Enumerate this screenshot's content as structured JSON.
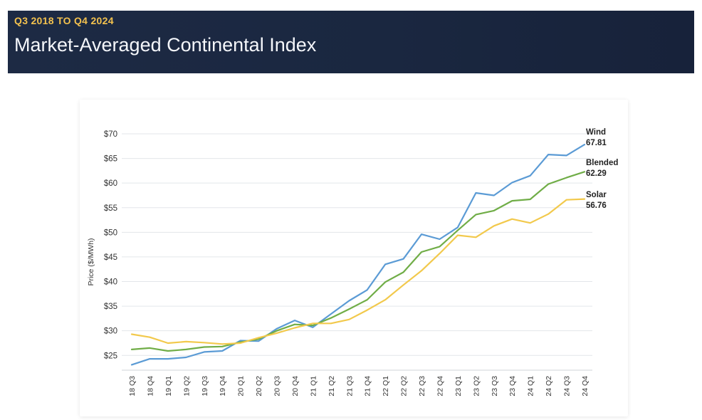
{
  "header": {
    "subtitle": "Q3 2018 TO Q4 2024",
    "title": "Market-Averaged Continental Index"
  },
  "chart_data": {
    "type": "line",
    "title": "Market-Averaged Continental Index",
    "subtitle": "Q3 2018 TO Q4 2024",
    "xlabel": "",
    "ylabel": "Price ($/MWh)",
    "ylim": [
      22,
      70
    ],
    "yticks": [
      25,
      30,
      35,
      40,
      45,
      50,
      55,
      60,
      65,
      70
    ],
    "ytick_labels": [
      "$25",
      "$30",
      "$35",
      "$40",
      "$45",
      "$50",
      "$55",
      "$60",
      "$65",
      "$70"
    ],
    "grid": true,
    "categories": [
      "18 Q3",
      "18 Q4",
      "19 Q1",
      "19 Q2",
      "19 Q3",
      "19 Q4",
      "20 Q1",
      "20 Q2",
      "20 Q3",
      "20 Q4",
      "21 Q1",
      "21 Q2",
      "21 Q3",
      "21 Q4",
      "22 Q1",
      "22 Q2",
      "22 Q3",
      "22 Q4",
      "23 Q1",
      "23 Q2",
      "23 Q3",
      "23 Q4",
      "24 Q1",
      "24 Q2",
      "24 Q3",
      "24 Q4"
    ],
    "series": [
      {
        "name": "Wind",
        "end_label": "67.81",
        "color": "#5b9bd5",
        "values": [
          23.1,
          24.3,
          24.3,
          24.6,
          25.7,
          25.9,
          28.0,
          27.9,
          30.4,
          32.1,
          30.7,
          33.4,
          36.1,
          38.3,
          43.5,
          44.6,
          49.6,
          48.6,
          51.0,
          58.0,
          57.5,
          60.1,
          61.5,
          65.8,
          65.6,
          67.81
        ]
      },
      {
        "name": "Blended",
        "end_label": "62.29",
        "color": "#70ad47",
        "values": [
          26.2,
          26.5,
          25.9,
          26.2,
          26.7,
          26.8,
          27.7,
          28.3,
          30.0,
          31.3,
          31.1,
          32.6,
          34.4,
          36.3,
          39.9,
          41.9,
          46.0,
          47.1,
          50.4,
          53.6,
          54.4,
          56.4,
          56.7,
          59.8,
          61.1,
          62.29
        ]
      },
      {
        "name": "Solar",
        "end_label": "56.76",
        "color": "#f2c94c",
        "values": [
          29.3,
          28.7,
          27.5,
          27.8,
          27.6,
          27.3,
          27.5,
          28.6,
          29.5,
          30.6,
          31.5,
          31.5,
          32.3,
          34.2,
          36.3,
          39.3,
          42.2,
          45.7,
          49.4,
          49.0,
          51.3,
          52.7,
          51.9,
          53.7,
          56.6,
          56.76
        ]
      }
    ]
  }
}
